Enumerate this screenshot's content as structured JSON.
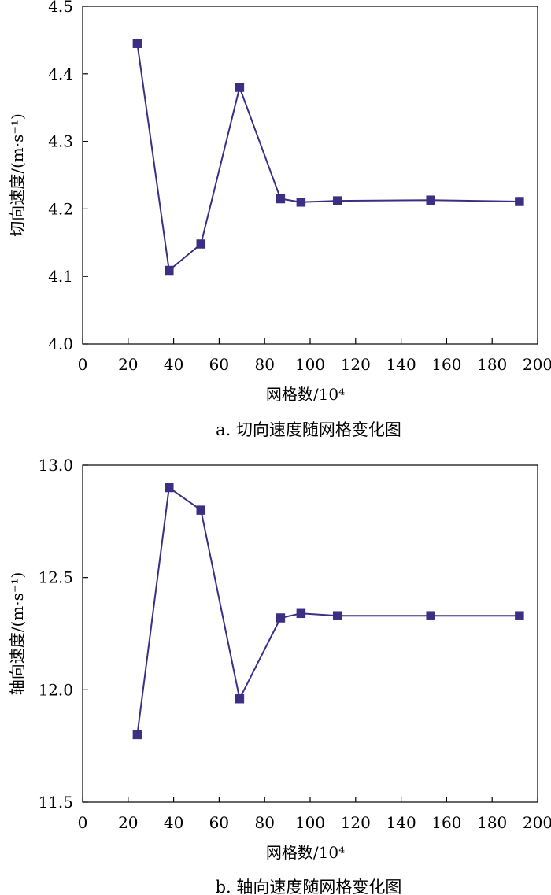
{
  "colors": {
    "series": "#3b2f84",
    "axis": "#000000"
  },
  "chart_data": [
    {
      "type": "line",
      "title": "a. 切向速度随网格变化图",
      "xlabel": "网格数/10⁴",
      "ylabel": "切向速度/(m·s⁻¹)",
      "xlim": [
        0,
        200
      ],
      "ylim": [
        4.0,
        4.5
      ],
      "xticks": [
        0,
        20,
        40,
        60,
        80,
        100,
        120,
        140,
        160,
        180,
        200
      ],
      "yticks": [
        "4.0",
        "4.1",
        "4.2",
        "4.3",
        "4.4",
        "4.5"
      ],
      "grid": false,
      "marker": "square",
      "series": [
        {
          "x": [
            24,
            38,
            52,
            69,
            87,
            96,
            112,
            153,
            192
          ],
          "y": [
            4.445,
            4.109,
            4.148,
            4.38,
            4.215,
            4.21,
            4.212,
            4.213,
            4.211
          ]
        }
      ]
    },
    {
      "type": "line",
      "title": "b. 轴向速度随网格变化图",
      "xlabel": "网格数/10⁴",
      "ylabel": "轴向速度/(m·s⁻¹)",
      "xlim": [
        0,
        200
      ],
      "ylim": [
        11.5,
        13.0
      ],
      "xticks": [
        0,
        20,
        40,
        60,
        80,
        100,
        120,
        140,
        160,
        180,
        200
      ],
      "yticks": [
        "11.5",
        "12.0",
        "12.5",
        "13.0"
      ],
      "grid": false,
      "marker": "square",
      "series": [
        {
          "x": [
            24,
            38,
            52,
            69,
            87,
            96,
            112,
            153,
            192
          ],
          "y": [
            11.8,
            12.9,
            12.8,
            11.96,
            12.32,
            12.34,
            12.33,
            12.33,
            12.33
          ]
        }
      ]
    }
  ]
}
